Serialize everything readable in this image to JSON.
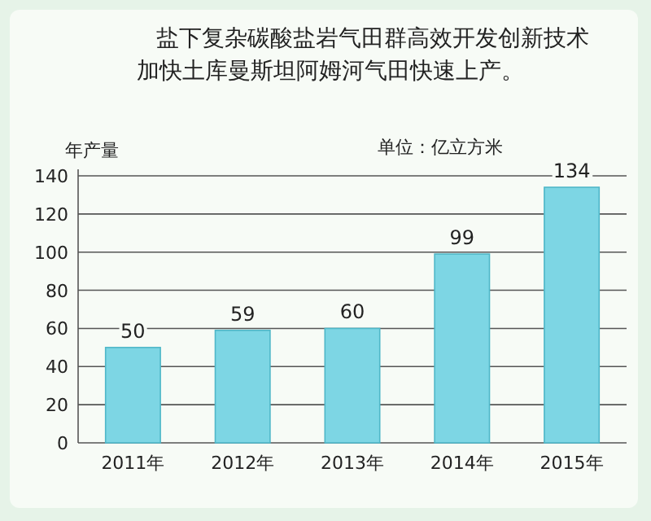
{
  "chart_data": {
    "type": "bar",
    "title": "盐下复杂碳酸盐岩气田群高效开发创新技术加快土库曼斯坦阿姆河气田快速上产。",
    "ylabel": "年产量",
    "annotations": [
      "单位：亿立方米"
    ],
    "categories": [
      "2011年",
      "2012年",
      "2013年",
      "2014年",
      "2015年"
    ],
    "values": [
      50,
      59,
      60,
      99,
      134
    ],
    "color": "#7dd6e4",
    "ylim": [
      0,
      140
    ],
    "yticks": [
      0,
      20,
      40,
      60,
      80,
      100,
      120,
      140
    ],
    "grid": "y",
    "data_labels": true
  }
}
